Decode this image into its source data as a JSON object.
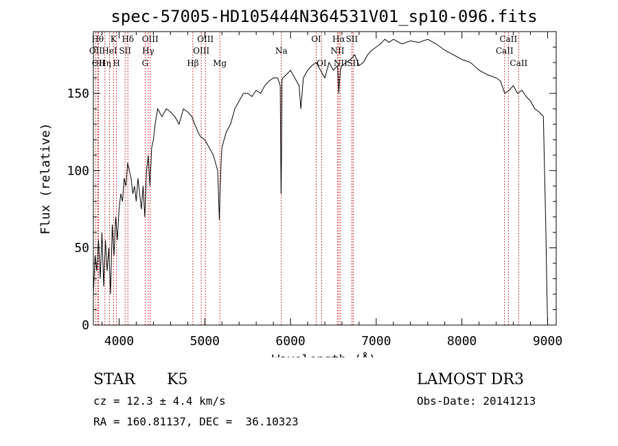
{
  "chart_data": {
    "type": "line",
    "title": "spec-57005-HD105444N364531V01_sp10-096.fits",
    "xlabel": "Wavelength (Å)",
    "ylabel": "Flux (relative)",
    "xlim": [
      3700,
      9100
    ],
    "ylim": [
      0,
      190
    ],
    "xticks": [
      4000,
      5000,
      6000,
      7000,
      8000,
      9000
    ],
    "yticks": [
      0,
      50,
      100,
      150
    ],
    "line_color": "#000000",
    "marker_color": "#cc0000",
    "series": [
      {
        "name": "spectrum",
        "x": [
          3700,
          3720,
          3740,
          3760,
          3780,
          3800,
          3820,
          3840,
          3860,
          3880,
          3900,
          3920,
          3940,
          3960,
          3980,
          4000,
          4020,
          4040,
          4060,
          4080,
          4100,
          4120,
          4140,
          4160,
          4180,
          4200,
          4220,
          4240,
          4260,
          4280,
          4300,
          4320,
          4340,
          4360,
          4380,
          4400,
          4420,
          4450,
          4500,
          4550,
          4600,
          4650,
          4700,
          4750,
          4800,
          4850,
          4880,
          4900,
          4920,
          4950,
          5000,
          5050,
          5100,
          5150,
          5170,
          5180,
          5190,
          5200,
          5250,
          5300,
          5350,
          5400,
          5450,
          5500,
          5550,
          5600,
          5650,
          5700,
          5750,
          5800,
          5850,
          5880,
          5890,
          5895,
          5900,
          5910,
          5950,
          6000,
          6050,
          6100,
          6120,
          6150,
          6200,
          6250,
          6300,
          6350,
          6400,
          6450,
          6500,
          6550,
          6563,
          6580,
          6600,
          6650,
          6700,
          6750,
          6800,
          6850,
          6900,
          6950,
          7000,
          7050,
          7100,
          7150,
          7200,
          7300,
          7400,
          7500,
          7600,
          7700,
          7800,
          7900,
          8000,
          8100,
          8200,
          8300,
          8400,
          8450,
          8500,
          8550,
          8600,
          8650,
          8700,
          8750,
          8800,
          8850,
          8900,
          8950,
          8980,
          8990,
          9000
        ],
        "values": [
          20,
          45,
          35,
          55,
          30,
          60,
          25,
          55,
          35,
          50,
          20,
          65,
          45,
          70,
          55,
          75,
          85,
          80,
          95,
          90,
          105,
          100,
          95,
          85,
          90,
          80,
          95,
          85,
          75,
          90,
          70,
          100,
          110,
          90,
          115,
          120,
          130,
          140,
          135,
          140,
          138,
          135,
          130,
          140,
          138,
          135,
          130,
          128,
          125,
          122,
          120,
          115,
          110,
          100,
          68,
          90,
          105,
          115,
          125,
          130,
          140,
          145,
          150,
          150,
          148,
          152,
          150,
          155,
          158,
          160,
          160,
          155,
          85,
          110,
          158,
          160,
          162,
          165,
          160,
          155,
          140,
          160,
          165,
          168,
          170,
          165,
          160,
          170,
          165,
          168,
          150,
          165,
          168,
          170,
          172,
          175,
          168,
          170,
          175,
          178,
          180,
          182,
          185,
          183,
          185,
          182,
          184,
          183,
          185,
          182,
          178,
          175,
          172,
          170,
          165,
          162,
          160,
          158,
          150,
          152,
          155,
          150,
          152,
          148,
          145,
          140,
          138,
          135,
          60,
          25,
          0
        ]
      }
    ],
    "lines": [
      {
        "name": "OII",
        "x": 3727,
        "row": 2
      },
      {
        "name": "Hθ",
        "x": 3750,
        "row": 1
      },
      {
        "name": "OII",
        "x": 3760,
        "row": 3
      },
      {
        "name": "Hη",
        "x": 3835,
        "row": 3
      },
      {
        "name": "HeI",
        "x": 3889,
        "row": 2
      },
      {
        "name": "K",
        "x": 3934,
        "row": 1
      },
      {
        "name": "H",
        "x": 3969,
        "row": 3
      },
      {
        "name": "SII",
        "x": 4070,
        "row": 2
      },
      {
        "name": "Hδ",
        "x": 4102,
        "row": 1
      },
      {
        "name": "G",
        "x": 4304,
        "row": 3
      },
      {
        "name": "Hγ",
        "x": 4340,
        "row": 2
      },
      {
        "name": "OIII",
        "x": 4363,
        "row": 1
      },
      {
        "name": "Hβ",
        "x": 4861,
        "row": 3
      },
      {
        "name": "OIII",
        "x": 4959,
        "row": 2
      },
      {
        "name": "OIII",
        "x": 5007,
        "row": 1
      },
      {
        "name": "Mg",
        "x": 5175,
        "row": 3
      },
      {
        "name": "Na",
        "x": 5893,
        "row": 2
      },
      {
        "name": "OI",
        "x": 6300,
        "row": 1
      },
      {
        "name": "OI",
        "x": 6363,
        "row": 3
      },
      {
        "name": "NII",
        "x": 6548,
        "row": 2
      },
      {
        "name": "Hα",
        "x": 6563,
        "row": 1
      },
      {
        "name": "NII",
        "x": 6583,
        "row": 3
      },
      {
        "name": "SII",
        "x": 6716,
        "row": 1
      },
      {
        "name": "SII",
        "x": 6731,
        "row": 3
      },
      {
        "name": "CaII",
        "x": 8498,
        "row": 2
      },
      {
        "name": "CaII",
        "x": 8542,
        "row": 1
      },
      {
        "name": "CaII",
        "x": 8662,
        "row": 3
      }
    ]
  },
  "info": {
    "object_type": "STAR",
    "subclass": "K5",
    "survey": "LAMOST DR3",
    "cz": "cz = 12.3 ± 4.4 km/s",
    "obs_date": "Obs-Date: 20141213",
    "coords": "RA = 160.81137, DEC =  36.10323"
  }
}
